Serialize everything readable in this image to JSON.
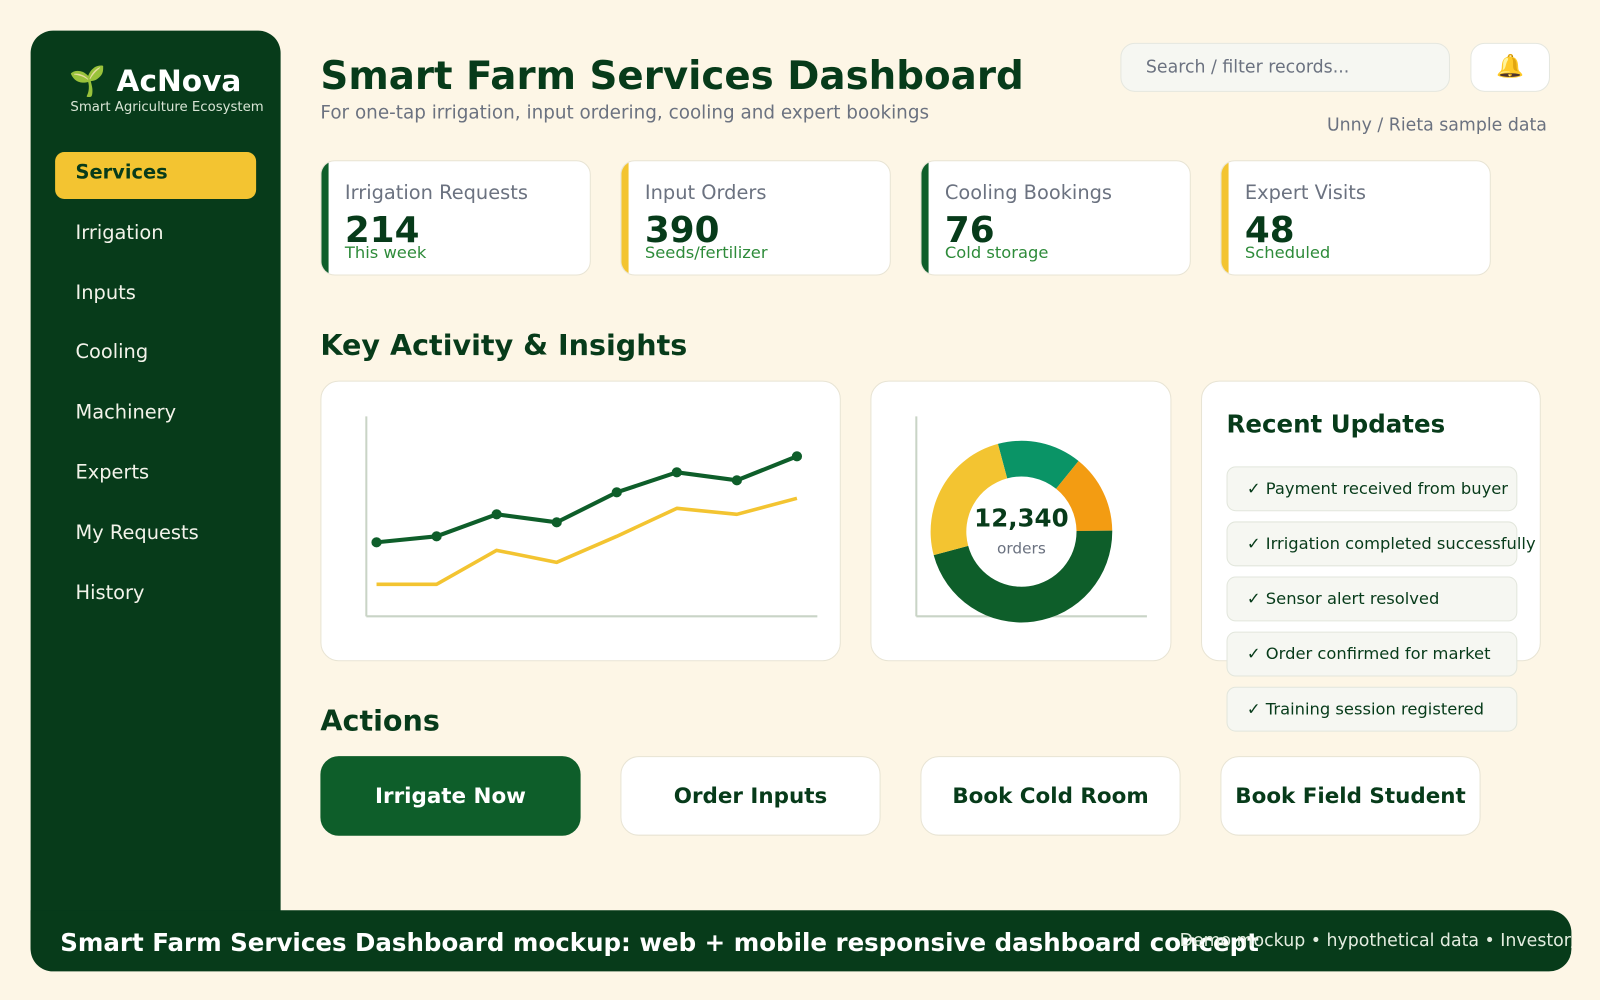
{
  "brand": {
    "icon": "🌱",
    "name": "AcNova",
    "tagline": "Smart Agriculture Ecosystem"
  },
  "nav": [
    "Services",
    "Irrigation",
    "Inputs",
    "Cooling",
    "Machinery",
    "Experts",
    "My Requests",
    "History"
  ],
  "header": {
    "title": "Smart Farm Services Dashboard",
    "subtitle": "For one-tap irrigation, input ordering, cooling and expert bookings",
    "search_placeholder": "Search / filter records...",
    "icon_button": "🔔",
    "sample_note": "Unny / Rieta sample data"
  },
  "kpis": [
    {
      "label": "Irrigation Requests",
      "value": "214",
      "note": "This week",
      "accent": "#0e5e2a"
    },
    {
      "label": "Input Orders",
      "value": "390",
      "note": "Seeds/fertilizer",
      "accent": "#f3c431"
    },
    {
      "label": "Cooling Bookings",
      "value": "76",
      "note": "Cold storage",
      "accent": "#0e5e2a"
    },
    {
      "label": "Expert Visits",
      "value": "48",
      "note": "Scheduled",
      "accent": "#f3c431"
    }
  ],
  "section_insights": "Key Activity & Insights",
  "chart_data": [
    {
      "type": "line",
      "categories": [
        null,
        null,
        null,
        null,
        null,
        null,
        null,
        null
      ],
      "ylim": [
        0,
        100
      ],
      "series": [
        {
          "color": "#0e5e2a",
          "values": [
            37,
            40,
            51,
            47,
            62,
            72,
            68,
            80
          ]
        },
        {
          "color": "#f3c431",
          "values": [
            16,
            16,
            33,
            27,
            40,
            54,
            51,
            59
          ]
        }
      ]
    },
    {
      "type": "pie",
      "values": [
        15,
        14,
        46,
        25
      ],
      "colors": [
        "#0a9466",
        "#f39c12",
        "#0e5e2a",
        "#f3c431"
      ],
      "center_value": "12,340",
      "center_label": "orders"
    }
  ],
  "updates": {
    "title": "Recent Updates",
    "items": [
      "✓ Payment received from buyer",
      "✓ Irrigation completed successfully",
      "✓ Sensor alert resolved",
      "✓ Order confirmed for market",
      "✓ Training session registered"
    ]
  },
  "section_actions": "Actions",
  "actions": [
    "Irrigate Now",
    "Order Inputs",
    "Book Cold Room",
    "Book Field Student"
  ],
  "footer": {
    "caption": "Smart Farm Services Dashboard mockup: web + mobile responsive dashboard concept",
    "note": "Demo mockup • hypothetical data • Investor/Partner"
  }
}
